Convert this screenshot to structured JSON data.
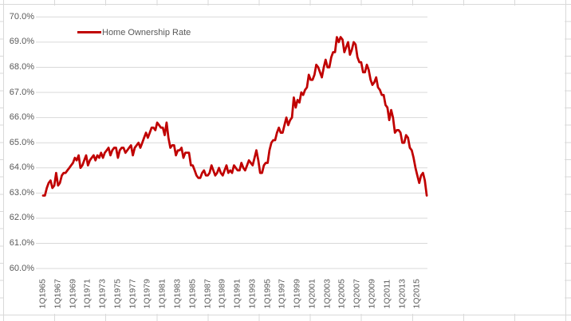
{
  "colors": {
    "series_line": "#C00000",
    "chart_gridline": "#D9D9D9",
    "sheet_gridline": "#D9D9D9",
    "axis_text": "#595959",
    "background": "#FFFFFF"
  },
  "chart_data": {
    "type": "line",
    "title": "",
    "xlabel": "",
    "ylabel": "",
    "frequency": "quarterly",
    "x_start": "1Q1965",
    "x_end": "2Q2016",
    "ylim": [
      60,
      70
    ],
    "y_step": 1,
    "grid": "horizontal-only",
    "legend_position": "inside-top-left",
    "y_tick_labels": [
      "70.0%",
      "69.0%",
      "68.0%",
      "67.0%",
      "66.0%",
      "65.0%",
      "64.0%",
      "63.0%",
      "62.0%",
      "61.0%",
      "60.0%"
    ],
    "x_tick_labels": [
      "1Q1965",
      "1Q1967",
      "1Q1969",
      "1Q1971",
      "1Q1973",
      "1Q1975",
      "1Q1977",
      "1Q1979",
      "1Q1981",
      "1Q1983",
      "1Q1985",
      "1Q1987",
      "1Q1989",
      "1Q1991",
      "1Q1993",
      "1Q1995",
      "1Q1997",
      "1Q1999",
      "1Q2001",
      "1Q2003",
      "1Q2005",
      "1Q2007",
      "1Q2009",
      "1Q2011",
      "1Q2013",
      "1Q2015"
    ],
    "x_ticks_every_n_points": 8,
    "series": [
      {
        "name": "Home Ownership Rate",
        "color": "#C00000",
        "values": [
          62.9,
          62.9,
          63.2,
          63.4,
          63.5,
          63.2,
          63.3,
          63.8,
          63.3,
          63.4,
          63.7,
          63.8,
          63.8,
          63.9,
          64.0,
          64.1,
          64.2,
          64.4,
          64.3,
          64.5,
          64.0,
          64.1,
          64.3,
          64.5,
          64.1,
          64.3,
          64.4,
          64.5,
          64.3,
          64.5,
          64.4,
          64.6,
          64.4,
          64.6,
          64.7,
          64.8,
          64.5,
          64.7,
          64.8,
          64.8,
          64.4,
          64.7,
          64.8,
          64.8,
          64.6,
          64.7,
          64.8,
          64.9,
          64.5,
          64.8,
          64.9,
          65.0,
          64.8,
          65.0,
          65.2,
          65.4,
          65.2,
          65.4,
          65.6,
          65.6,
          65.5,
          65.8,
          65.7,
          65.6,
          65.6,
          65.3,
          65.8,
          65.2,
          64.8,
          64.9,
          64.9,
          64.5,
          64.7,
          64.7,
          64.8,
          64.4,
          64.6,
          64.6,
          64.6,
          64.1,
          64.1,
          63.9,
          63.7,
          63.6,
          63.6,
          63.8,
          63.9,
          63.7,
          63.7,
          63.8,
          64.1,
          63.9,
          63.7,
          63.8,
          64.0,
          63.8,
          63.7,
          63.9,
          64.1,
          63.8,
          63.9,
          63.8,
          64.1,
          64.0,
          63.9,
          63.9,
          64.2,
          64.0,
          63.9,
          64.1,
          64.3,
          64.2,
          64.1,
          64.4,
          64.7,
          64.3,
          63.8,
          63.8,
          64.1,
          64.2,
          64.2,
          64.7,
          65.0,
          65.1,
          65.1,
          65.4,
          65.6,
          65.4,
          65.4,
          65.7,
          66.0,
          65.7,
          65.9,
          66.0,
          66.8,
          66.4,
          66.7,
          66.6,
          67.0,
          66.9,
          67.1,
          67.2,
          67.7,
          67.5,
          67.5,
          67.7,
          68.1,
          68.0,
          67.8,
          67.6,
          68.0,
          68.3,
          68.0,
          68.0,
          68.4,
          68.6,
          68.6,
          69.2,
          69.0,
          69.2,
          69.1,
          68.6,
          68.8,
          69.0,
          68.5,
          68.7,
          69.0,
          68.9,
          68.4,
          68.2,
          68.2,
          67.8,
          67.8,
          68.1,
          67.9,
          67.5,
          67.3,
          67.4,
          67.6,
          67.2,
          67.1,
          66.9,
          66.9,
          66.5,
          66.4,
          65.9,
          66.3,
          66.0,
          65.4,
          65.5,
          65.5,
          65.4,
          65.0,
          65.0,
          65.3,
          65.2,
          64.8,
          64.7,
          64.4,
          64.0,
          63.7,
          63.4,
          63.7,
          63.8,
          63.5,
          62.9
        ]
      }
    ]
  }
}
